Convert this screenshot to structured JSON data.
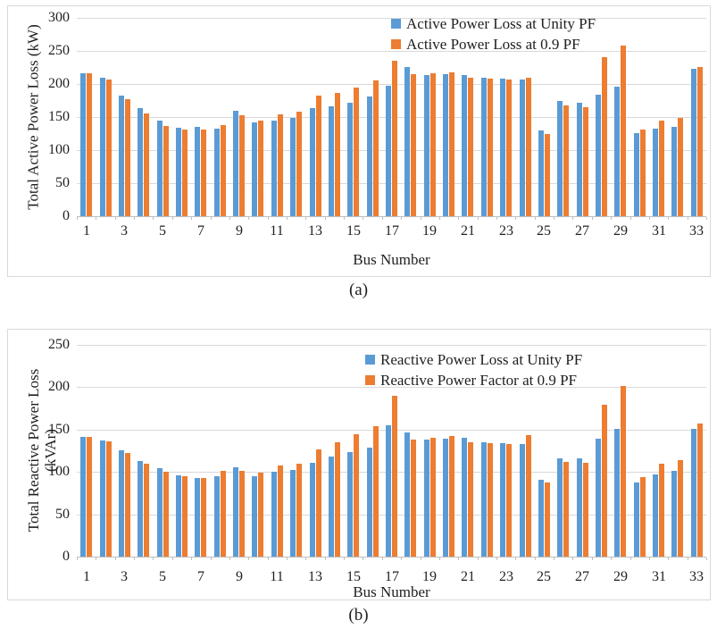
{
  "colors": {
    "series_unity_blue": "#5B9BD5",
    "series_pf09_orange": "#ED7D31",
    "gridline": "#D9D9D9",
    "axis_line": "#BFBFBF",
    "text": "#1F1F1F",
    "background": "#FFFFFF"
  },
  "chart_data": [
    {
      "id": "a",
      "type": "bar",
      "caption": "(a)",
      "ylabel": "Total Active Power Loss (kW)",
      "ylabel_line2": "",
      "xlabel": "Bus Number",
      "ylim": [
        0,
        300
      ],
      "yticks": [
        0,
        50,
        100,
        150,
        200,
        250,
        300
      ],
      "grid": true,
      "legend_position": "top-right-inside",
      "categories": [
        1,
        2,
        3,
        4,
        5,
        6,
        7,
        8,
        9,
        10,
        11,
        12,
        13,
        14,
        15,
        16,
        17,
        18,
        19,
        20,
        21,
        22,
        23,
        24,
        25,
        26,
        27,
        28,
        29,
        30,
        31,
        32,
        33
      ],
      "xticks_shown": [
        1,
        3,
        5,
        7,
        9,
        11,
        13,
        15,
        17,
        19,
        21,
        23,
        25,
        27,
        29,
        31,
        33
      ],
      "series": [
        {
          "name": "Active Power Loss at Unity PF",
          "color": "#5B9BD5",
          "values": [
            216,
            209,
            182,
            163,
            145,
            134,
            135,
            133,
            160,
            142,
            145,
            148,
            163,
            166,
            172,
            181,
            197,
            225,
            214,
            215,
            214,
            209,
            208,
            207,
            130,
            174,
            171,
            184,
            196,
            125,
            133,
            135,
            223
          ]
        },
        {
          "name": "Active Power Loss at 0.9 PF",
          "color": "#ED7D31",
          "values": [
            216,
            207,
            177,
            156,
            137,
            131,
            131,
            138,
            153,
            144,
            154,
            158,
            182,
            187,
            194,
            206,
            235,
            215,
            216,
            217,
            209,
            208,
            207,
            210,
            124,
            168,
            165,
            240,
            258,
            131,
            145,
            148,
            226
          ]
        }
      ]
    },
    {
      "id": "b",
      "type": "bar",
      "caption": "(b)",
      "ylabel": "Total Reactive Power Loss",
      "ylabel_line2": "(kVAr)",
      "xlabel": "Bus Number",
      "ylim": [
        0,
        250
      ],
      "yticks": [
        0,
        50,
        100,
        150,
        200,
        250
      ],
      "grid": true,
      "legend_position": "top-right-inside",
      "categories": [
        1,
        2,
        3,
        4,
        5,
        6,
        7,
        8,
        9,
        10,
        11,
        12,
        13,
        14,
        15,
        16,
        17,
        18,
        19,
        20,
        21,
        22,
        23,
        24,
        25,
        26,
        27,
        28,
        29,
        30,
        31,
        32,
        33
      ],
      "xticks_shown": [
        1,
        3,
        5,
        7,
        9,
        11,
        13,
        15,
        17,
        19,
        21,
        23,
        25,
        27,
        29,
        31,
        33
      ],
      "series": [
        {
          "name": "Reactive Power Loss at Unity PF",
          "color": "#5B9BD5",
          "values": [
            141,
            137,
            125,
            113,
            104,
            96,
            93,
            95,
            105,
            95,
            100,
            102,
            111,
            118,
            123,
            129,
            155,
            147,
            138,
            139,
            140,
            135,
            134,
            133,
            91,
            116,
            116,
            139,
            151,
            88,
            97,
            101,
            151
          ]
        },
        {
          "name": "Reactive Power Factor at 0.9 PF",
          "color": "#ED7D31",
          "values": [
            141,
            136,
            122,
            110,
            100,
            95,
            93,
            101,
            101,
            99,
            108,
            110,
            127,
            135,
            145,
            154,
            190,
            138,
            140,
            142,
            135,
            134,
            133,
            143,
            88,
            112,
            111,
            179,
            202,
            94,
            110,
            114,
            157
          ]
        }
      ]
    }
  ]
}
